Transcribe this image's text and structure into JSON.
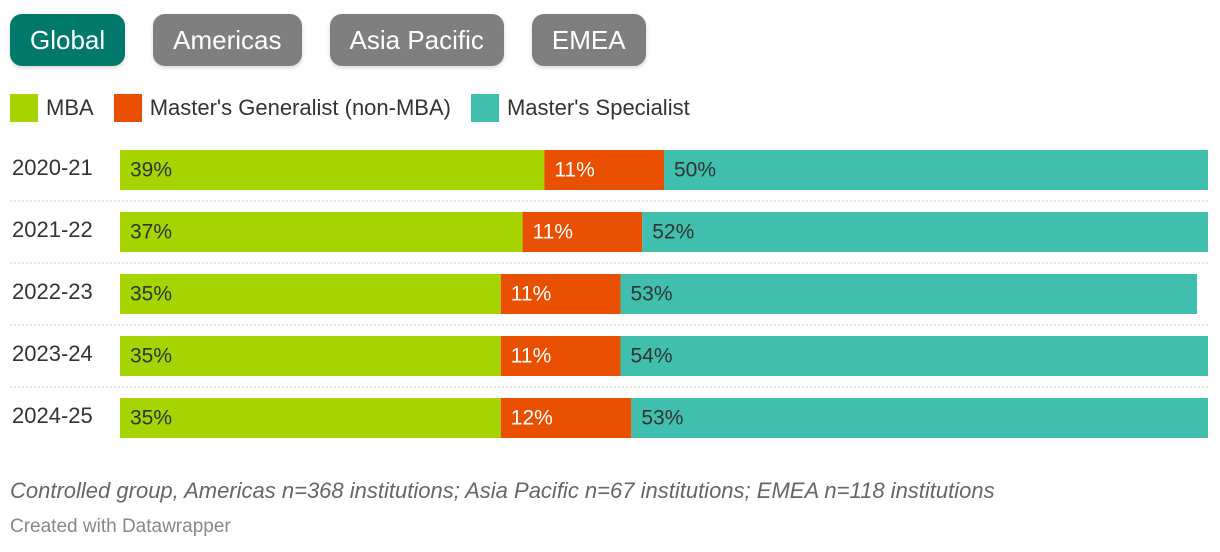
{
  "tabs": [
    {
      "label": "Global",
      "active": true
    },
    {
      "label": "Americas",
      "active": false
    },
    {
      "label": "Asia Pacific",
      "active": false
    },
    {
      "label": "EMEA",
      "active": false
    }
  ],
  "colors": {
    "mba": "#a5d400",
    "generalist": "#e85000",
    "specialist": "#40bfae",
    "tab_active": "#00786b",
    "tab_inactive": "#7f7f7f"
  },
  "chart_data": {
    "type": "bar",
    "orientation": "horizontal",
    "stacked": true,
    "categories": [
      "2020-21",
      "2021-22",
      "2022-23",
      "2023-24",
      "2024-25"
    ],
    "series": [
      {
        "name": "MBA",
        "values": [
          39,
          37,
          35,
          35,
          35
        ],
        "labels": [
          "39%",
          "37%",
          "35%",
          "35%",
          "35%"
        ]
      },
      {
        "name": "Master's Generalist (non-MBA)",
        "values": [
          11,
          11,
          11,
          11,
          12
        ],
        "labels": [
          "11%",
          "11%",
          "11%",
          "11%",
          "12%"
        ]
      },
      {
        "name": "Master's Specialist",
        "values": [
          50,
          52,
          53,
          54,
          53
        ],
        "labels": [
          "50%",
          "52%",
          "53%",
          "54%",
          "53%"
        ]
      }
    ],
    "xlim": [
      0,
      100
    ],
    "legend_position": "top-left",
    "grid": false
  },
  "footer": {
    "note": "Controlled group, Americas n=368 institutions; Asia Pacific n=67 institutions; EMEA n=118 institutions",
    "credit": "Created with Datawrapper"
  }
}
